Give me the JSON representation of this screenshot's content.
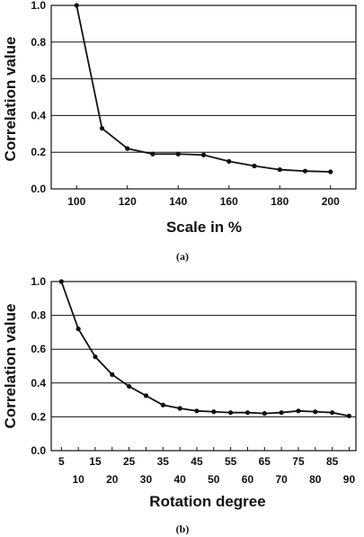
{
  "chart_data": [
    {
      "type": "line",
      "caption": "(a)",
      "xlabel": "Scale in %",
      "ylabel": "Correlation value",
      "xlim": [
        90,
        210
      ],
      "ylim": [
        0,
        1.0
      ],
      "x_ticks": [
        100,
        120,
        140,
        160,
        180,
        200
      ],
      "y_ticks": [
        0.0,
        0.2,
        0.4,
        0.6,
        0.8,
        1.0
      ],
      "y_tick_labels": [
        "0.0",
        "0.2",
        "0.4",
        "0.6",
        "0.8",
        "1.0"
      ],
      "grid": "horizontal",
      "series": [
        {
          "x": [
            100,
            110,
            120,
            130,
            140,
            150,
            160,
            170,
            180,
            190,
            200
          ],
          "y": [
            1.0,
            0.33,
            0.22,
            0.19,
            0.19,
            0.185,
            0.15,
            0.125,
            0.105,
            0.097,
            0.093
          ]
        }
      ]
    },
    {
      "type": "line",
      "caption": "(b)",
      "xlabel": "Rotation degree",
      "ylabel": "Correlation value",
      "xlim": [
        2,
        92
      ],
      "ylim": [
        0,
        1.0
      ],
      "x_ticks": [
        5,
        10,
        15,
        20,
        25,
        30,
        35,
        40,
        45,
        50,
        55,
        60,
        65,
        70,
        75,
        80,
        85,
        90
      ],
      "y_ticks": [
        0.0,
        0.2,
        0.4,
        0.6,
        0.8,
        1.0
      ],
      "y_tick_labels": [
        "0.0",
        "0.2",
        "0.4",
        "0.6",
        "0.8",
        "1.0"
      ],
      "grid": "horizontal",
      "series": [
        {
          "x": [
            5,
            10,
            15,
            20,
            25,
            30,
            35,
            40,
            45,
            50,
            55,
            60,
            65,
            70,
            75,
            80,
            85,
            90
          ],
          "y": [
            1.0,
            0.72,
            0.555,
            0.45,
            0.38,
            0.325,
            0.27,
            0.25,
            0.235,
            0.23,
            0.225,
            0.225,
            0.22,
            0.225,
            0.235,
            0.23,
            0.225,
            0.205
          ]
        }
      ]
    }
  ]
}
